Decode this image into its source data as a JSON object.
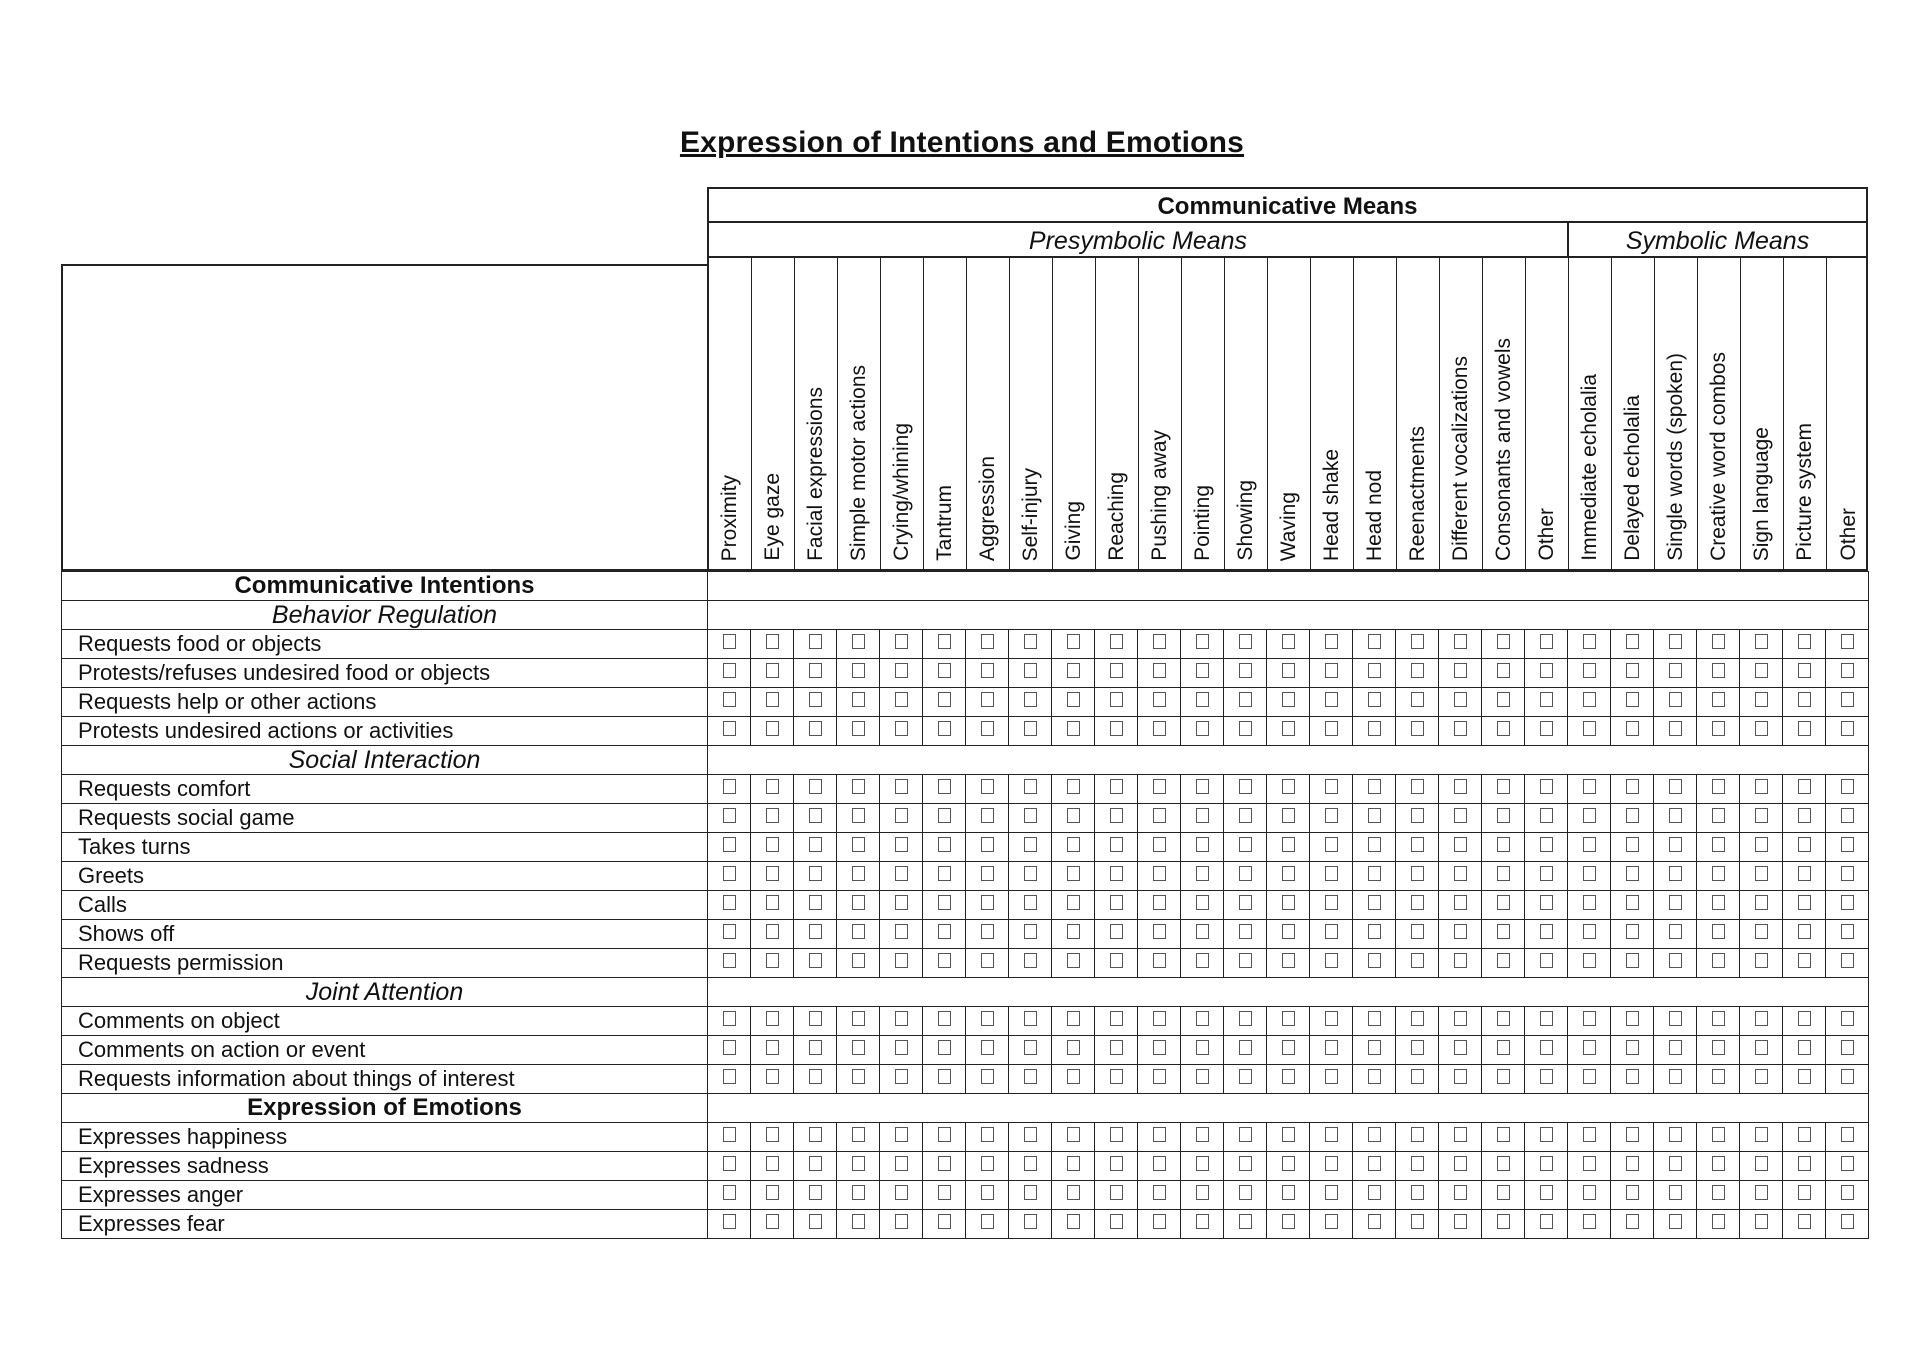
{
  "title": "Expression of Intentions and Emotions",
  "header": {
    "communicative_means": "Communicative Means",
    "presymbolic_means": "Presymbolic Means",
    "symbolic_means": "Symbolic Means"
  },
  "columns": [
    "Proximity",
    "Eye gaze",
    "Facial expressions",
    "Simple motor actions",
    "Crying/whining",
    "Tantrum",
    "Aggression",
    "Self-injury",
    "Giving",
    "Reaching",
    "Pushing away",
    "Pointing",
    "Showing",
    "Waving",
    "Head shake",
    "Head nod",
    "Reenactments",
    "Different vocalizations",
    "Consonants and vowels",
    "Other",
    "Immediate echolalia",
    "Delayed echolalia",
    "Single words (spoken)",
    "Creative word combos",
    "Sign language",
    "Picture system",
    "Other"
  ],
  "rows": [
    {
      "type": "section-bold",
      "label": "Communicative Intentions"
    },
    {
      "type": "section-italic",
      "label": "Behavior Regulation"
    },
    {
      "type": "item",
      "label": "Requests food or objects"
    },
    {
      "type": "item",
      "label": "Protests/refuses undesired food or objects"
    },
    {
      "type": "item",
      "label": "Requests help or other actions"
    },
    {
      "type": "item",
      "label": "Protests undesired actions or activities"
    },
    {
      "type": "section-italic",
      "label": "Social Interaction"
    },
    {
      "type": "item",
      "label": "Requests comfort"
    },
    {
      "type": "item",
      "label": "Requests social game"
    },
    {
      "type": "item",
      "label": "Takes turns"
    },
    {
      "type": "item",
      "label": "Greets"
    },
    {
      "type": "item",
      "label": "Calls"
    },
    {
      "type": "item",
      "label": "Shows off"
    },
    {
      "type": "item",
      "label": "Requests permission"
    },
    {
      "type": "section-italic",
      "label": "Joint Attention"
    },
    {
      "type": "item",
      "label": "Comments on object"
    },
    {
      "type": "item",
      "label": "Comments on action or event"
    },
    {
      "type": "item",
      "label": "Requests information about things of interest"
    },
    {
      "type": "section-bold",
      "label": "Expression of Emotions"
    },
    {
      "type": "item",
      "label": "Expresses happiness"
    },
    {
      "type": "item",
      "label": "Expresses sadness"
    },
    {
      "type": "item",
      "label": "Expresses anger"
    },
    {
      "type": "item",
      "label": "Expresses fear"
    }
  ]
}
